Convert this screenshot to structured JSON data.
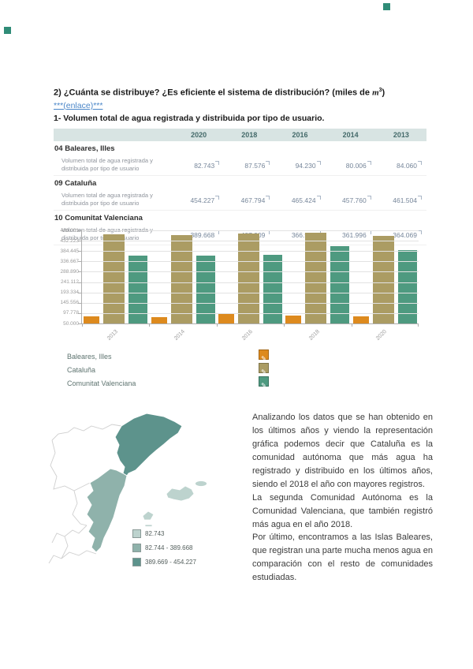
{
  "decorations": {
    "marker_color": "#2f8c77"
  },
  "page": {
    "title_prefix": "2) ¿Cuánta se distribuye? ¿Es eficiente el sistema de distribución? (miles de ",
    "title_math": "m",
    "title_sup": "3",
    "title_suffix": ")",
    "link": "***(enlace)***",
    "subtitle": "1- Volumen total de agua registrada y distribuida por tipo de usuario."
  },
  "table": {
    "columns": [
      "2020",
      "2018",
      "2016",
      "2014",
      "2013"
    ],
    "row_label": "Volumen total de agua registrada y distribuida por tipo de usuario",
    "groups": [
      {
        "name": "04 Baleares, Illes",
        "values": [
          "82.743",
          "87.576",
          "94.230",
          "80.006",
          "84.060"
        ]
      },
      {
        "name": "09 Cataluña",
        "values": [
          "454.227",
          "467.794",
          "465.424",
          "457.760",
          "461.504"
        ]
      },
      {
        "name": "10 Comunitat Valenciana",
        "values": [
          "389.668",
          "407.009",
          "366.952",
          "361.996",
          "364.069"
        ]
      }
    ]
  },
  "chart_data": {
    "type": "bar",
    "title": "",
    "xlabel": "",
    "ylabel": "",
    "categories": [
      "2013",
      "2014",
      "2016",
      "2018",
      "2020"
    ],
    "series": [
      {
        "name": "Baleares, Illes",
        "color": "#dd8a1e",
        "values": [
          84060,
          80006,
          94230,
          87576,
          82743
        ]
      },
      {
        "name": "Cataluña",
        "color": "#ab9c63",
        "values": [
          461504,
          457760,
          465424,
          467794,
          454227
        ]
      },
      {
        "name": "Comunitat Valenciana",
        "color": "#4e9a80",
        "values": [
          364069,
          361996,
          366952,
          407009,
          389668
        ]
      }
    ],
    "ylim": [
      50000,
      480001
    ],
    "yticks": [
      "480.001",
      "432.223",
      "384.445",
      "336.667",
      "288.890",
      "241.112",
      "193.334",
      "145.556",
      "97.778",
      "50.000"
    ],
    "grid": true,
    "legend_position": "below-left"
  },
  "legend": {
    "swatch_icon": "pencil-icon",
    "items": [
      {
        "label": "Baleares, Illes",
        "color": "#dd8a1e"
      },
      {
        "label": "Cataluña",
        "color": "#ab9c63"
      },
      {
        "label": "Comunitat Valenciana",
        "color": "#4e9a80"
      }
    ]
  },
  "map": {
    "region_colors": {
      "low": "#bdd3ce",
      "mid": "#8fb2ab",
      "high": "#5d938c"
    },
    "legend": [
      {
        "label": "82.743",
        "color": "#bdd3ce"
      },
      {
        "label": "82.744 - 389.668",
        "color": "#8fb2ab"
      },
      {
        "label": "389.669 - 454.227",
        "color": "#5d938c"
      }
    ]
  },
  "analysis": {
    "paragraphs": [
      "Analizando los datos que se han obtenido en los últimos años y viendo la representación gráfica podemos decir que Cataluña es la comunidad autónoma que más agua ha registrado y distribuido en los últimos años, siendo el 2018 el año con mayores registros.",
      "La segunda Comunidad Autónoma es la Comunidad Valenciana, que también registró más agua en el año 2018.",
      "Por último, encontramos a las Islas Baleares, que registran una parte mucha menos agua en comparación con el resto de comunidades estudiadas."
    ]
  }
}
